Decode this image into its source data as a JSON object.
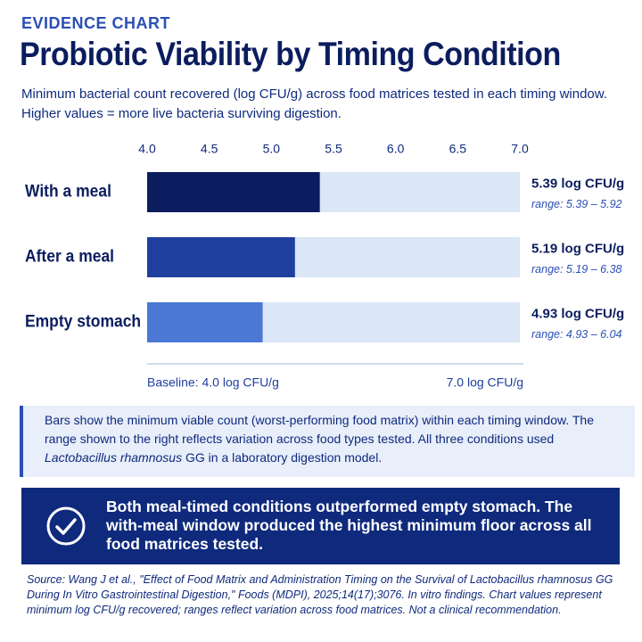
{
  "eyebrow": "EVIDENCE CHART",
  "chart_data": {
    "type": "bar",
    "orientation": "horizontal",
    "title": "Probiotic Viability by Timing Condition",
    "subtitle": "Minimum bacterial count recovered (log CFU/g) across food matrices tested in each timing window. Higher values = more live bacteria surviving digestion.",
    "categories": [
      "With a meal",
      "After a meal",
      "Empty stomach"
    ],
    "values": [
      5.39,
      5.19,
      4.93
    ],
    "value_labels": [
      "5.39 log CFU/g",
      "5.19 log CFU/g",
      "4.93 log CFU/g"
    ],
    "range_labels": [
      "range: 5.39 – 5.92",
      "range: 5.19 – 6.38",
      "range: 4.93 – 6.04"
    ],
    "colors": [
      "#0b1d5e",
      "#1f3f9f",
      "#4b78d4"
    ],
    "track_color": "#dbe6f7",
    "xlim": [
      4,
      7
    ],
    "xticks": [
      {
        "value": 4,
        "label": "4.0"
      },
      4.5,
      {
        "value": 5,
        "label": "5.0"
      },
      5.5,
      {
        "value": 6,
        "label": "6.0"
      },
      6.5,
      {
        "value": 7,
        "label": "7.0"
      }
    ],
    "baseline_label": "Baseline: 4.0 log CFU/g",
    "end_label": "7.0 log CFU/g"
  },
  "note": {
    "before": "Bars show the minimum viable count (worst-performing food matrix) within each timing window. The range shown to the right reflects variation across food types tested. All three conditions used ",
    "italic": "Lactobacillus rhamnosus",
    "after": " GG in a laboratory digestion model."
  },
  "callout": "Both meal-timed conditions outperformed empty stomach. The with-meal window produced the highest minimum floor across all food matrices tested.",
  "source": "Source: Wang J et al., \"Effect of Food Matrix and Administration Timing on the Survival of Lactobacillus rhamnosus GG During In Vitro Gastrointestinal Digestion,\" Foods (MDPI), 2025;14(17);3076. In vitro findings. Chart values represent minimum log CFU/g recovered; ranges reflect variation across food matrices. Not a clinical recommendation."
}
